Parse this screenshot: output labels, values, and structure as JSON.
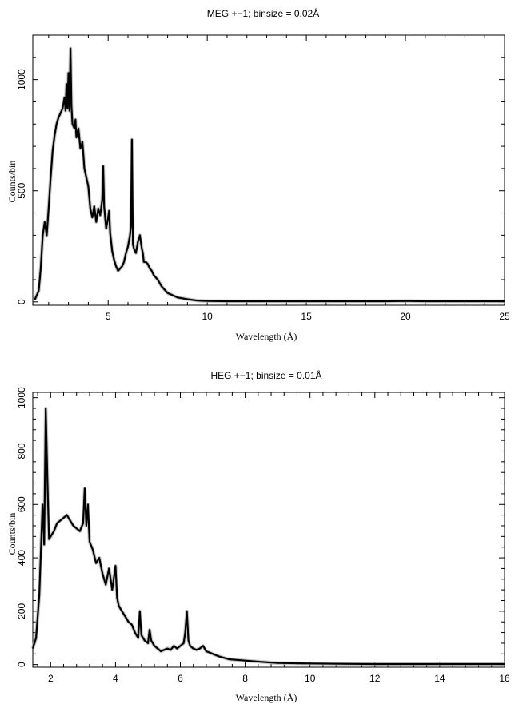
{
  "chart_data": [
    {
      "type": "line",
      "title": "MEG +−1; binsize = 0.02Å",
      "xlabel": "Wavelength (Å)",
      "ylabel": "Counts/bin",
      "xlim": [
        1.2,
        25
      ],
      "ylim": [
        -15,
        1200
      ],
      "xticks": [
        5,
        10,
        15,
        20,
        25
      ],
      "xtick_labels": [
        "5",
        "10",
        "15",
        "20",
        "25"
      ],
      "yticks": [
        0,
        500,
        1000
      ],
      "ytick_labels": [
        "0",
        "500",
        "1000"
      ],
      "series": [
        {
          "x": [
            1.3,
            1.5,
            1.6,
            1.7,
            1.8,
            1.9,
            2.0,
            2.1,
            2.2,
            2.3,
            2.4,
            2.5,
            2.6,
            2.7,
            2.8,
            2.85,
            2.9,
            2.95,
            3.0,
            3.05,
            3.1,
            3.15,
            3.2,
            3.3,
            3.35,
            3.4,
            3.5,
            3.6,
            3.7,
            3.8,
            3.9,
            4.0,
            4.1,
            4.2,
            4.3,
            4.4,
            4.5,
            4.6,
            4.7,
            4.75,
            4.8,
            4.9,
            5.0,
            5.05,
            5.1,
            5.2,
            5.3,
            5.4,
            5.5,
            5.6,
            5.7,
            5.8,
            5.9,
            6.0,
            6.1,
            6.15,
            6.2,
            6.25,
            6.3,
            6.4,
            6.5,
            6.6,
            6.7,
            6.75,
            6.8,
            6.9,
            7.0,
            7.1,
            7.2,
            7.3,
            7.5,
            7.7,
            8.0,
            8.5,
            9.0,
            9.5,
            10.0,
            11,
            12,
            13,
            14,
            15,
            16,
            17,
            18,
            19,
            20,
            21,
            22,
            23,
            24,
            25
          ],
          "y": [
            10,
            50,
            150,
            300,
            360,
            300,
            420,
            560,
            680,
            750,
            800,
            830,
            850,
            870,
            920,
            860,
            980,
            870,
            1030,
            860,
            1140,
            880,
            800,
            780,
            820,
            740,
            780,
            690,
            720,
            600,
            560,
            520,
            420,
            380,
            430,
            360,
            420,
            390,
            460,
            610,
            430,
            330,
            380,
            410,
            310,
            230,
            190,
            160,
            140,
            150,
            160,
            180,
            220,
            250,
            300,
            340,
            730,
            260,
            240,
            220,
            270,
            300,
            240,
            220,
            180,
            180,
            170,
            150,
            140,
            120,
            100,
            70,
            40,
            20,
            12,
            6,
            4,
            3,
            3,
            3,
            3,
            3,
            3,
            3,
            3,
            3,
            4,
            3,
            3,
            3,
            3,
            3
          ]
        }
      ]
    },
    {
      "type": "line",
      "title": "HEG +−1; binsize = 0.01Å",
      "xlabel": "Wavelength (Å)",
      "ylabel": "Counts/bin",
      "xlim": [
        1.45,
        16
      ],
      "ylim": [
        -10,
        1020
      ],
      "xticks": [
        2,
        4,
        6,
        8,
        10,
        12,
        14,
        16
      ],
      "xtick_labels": [
        "2",
        "4",
        "6",
        "8",
        "10",
        "12",
        "14",
        "16"
      ],
      "yticks": [
        0,
        200,
        400,
        600,
        800,
        1000
      ],
      "ytick_labels": [
        "0",
        "200",
        "400",
        "600",
        "800",
        "1000"
      ],
      "series": [
        {
          "x": [
            1.45,
            1.5,
            1.55,
            1.6,
            1.65,
            1.7,
            1.75,
            1.8,
            1.85,
            1.9,
            1.95,
            2.0,
            2.1,
            2.2,
            2.3,
            2.4,
            2.5,
            2.6,
            2.7,
            2.8,
            2.9,
            3.0,
            3.05,
            3.1,
            3.15,
            3.2,
            3.3,
            3.4,
            3.5,
            3.6,
            3.7,
            3.8,
            3.9,
            4.0,
            4.05,
            4.1,
            4.2,
            4.3,
            4.4,
            4.5,
            4.6,
            4.7,
            4.75,
            4.8,
            4.9,
            5.0,
            5.05,
            5.1,
            5.2,
            5.3,
            5.4,
            5.5,
            5.6,
            5.7,
            5.8,
            5.9,
            6.0,
            6.1,
            6.15,
            6.2,
            6.25,
            6.3,
            6.4,
            6.5,
            6.6,
            6.7,
            6.8,
            6.9,
            7.0,
            7.2,
            7.5,
            8.0,
            8.5,
            9.0,
            10,
            11,
            12,
            13,
            14,
            15,
            16
          ],
          "y": [
            60,
            80,
            100,
            180,
            260,
            420,
            600,
            450,
            960,
            700,
            470,
            480,
            500,
            530,
            540,
            550,
            560,
            540,
            520,
            510,
            500,
            530,
            660,
            520,
            600,
            460,
            430,
            380,
            400,
            340,
            300,
            360,
            280,
            370,
            250,
            220,
            200,
            180,
            160,
            150,
            120,
            100,
            200,
            110,
            90,
            80,
            130,
            90,
            70,
            60,
            50,
            55,
            60,
            55,
            70,
            60,
            70,
            80,
            120,
            200,
            90,
            70,
            60,
            55,
            60,
            70,
            50,
            45,
            40,
            30,
            20,
            15,
            10,
            6,
            4,
            3,
            2,
            2,
            2,
            2,
            2
          ]
        }
      ]
    }
  ]
}
